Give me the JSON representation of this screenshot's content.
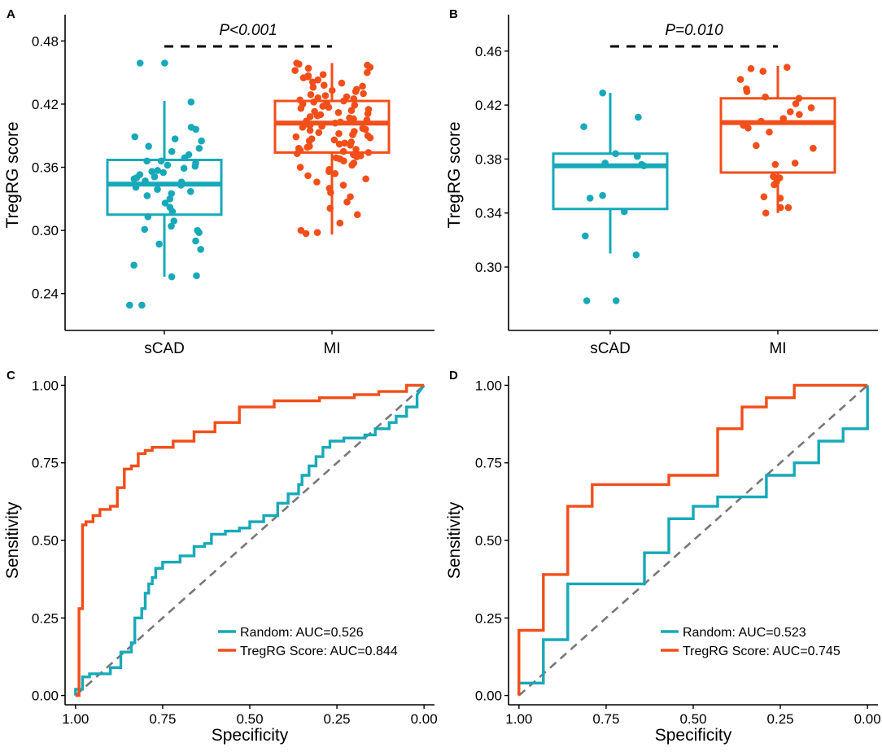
{
  "colors": {
    "teal": "#17a9b9",
    "orange": "#f24e1a",
    "diag": "#777777"
  },
  "chart_data": [
    {
      "panel": "A",
      "type": "box",
      "ylabel": "TregRG score",
      "ylim": [
        0.205,
        0.505
      ],
      "yticks": [
        "0.24",
        "0.30",
        "0.36",
        "0.42",
        "0.48"
      ],
      "categories": [
        "sCAD",
        "MI"
      ],
      "annotation": "P<0.001",
      "boxes": [
        {
          "group": "sCAD",
          "q1": 0.315,
          "median": 0.344,
          "q3": 0.367,
          "whisker_low": 0.256,
          "whisker_high": 0.423
        },
        {
          "group": "MI",
          "q1": 0.374,
          "median": 0.402,
          "q3": 0.423,
          "whisker_low": 0.296,
          "whisker_high": 0.459
        }
      ],
      "points": {
        "sCAD": [
          0.459,
          0.459,
          0.422,
          0.398,
          0.396,
          0.389,
          0.387,
          0.385,
          0.38,
          0.378,
          0.375,
          0.372,
          0.369,
          0.366,
          0.366,
          0.364,
          0.362,
          0.361,
          0.359,
          0.357,
          0.356,
          0.355,
          0.353,
          0.351,
          0.35,
          0.349,
          0.347,
          0.346,
          0.345,
          0.343,
          0.341,
          0.339,
          0.337,
          0.335,
          0.333,
          0.33,
          0.326,
          0.322,
          0.318,
          0.313,
          0.309,
          0.304,
          0.301,
          0.3,
          0.298,
          0.29,
          0.287,
          0.282,
          0.267,
          0.257,
          0.256,
          0.229,
          0.229
        ],
        "MI": [
          0.459,
          0.458,
          0.457,
          0.455,
          0.454,
          0.452,
          0.45,
          0.448,
          0.447,
          0.446,
          0.445,
          0.443,
          0.441,
          0.44,
          0.438,
          0.437,
          0.436,
          0.434,
          0.433,
          0.432,
          0.43,
          0.429,
          0.428,
          0.427,
          0.426,
          0.425,
          0.424,
          0.423,
          0.422,
          0.421,
          0.42,
          0.419,
          0.418,
          0.417,
          0.416,
          0.415,
          0.414,
          0.413,
          0.412,
          0.411,
          0.41,
          0.409,
          0.408,
          0.407,
          0.406,
          0.405,
          0.404,
          0.403,
          0.402,
          0.401,
          0.4,
          0.399,
          0.398,
          0.397,
          0.396,
          0.395,
          0.394,
          0.393,
          0.392,
          0.391,
          0.39,
          0.389,
          0.388,
          0.387,
          0.386,
          0.385,
          0.384,
          0.383,
          0.382,
          0.381,
          0.38,
          0.379,
          0.378,
          0.377,
          0.376,
          0.375,
          0.374,
          0.373,
          0.372,
          0.371,
          0.37,
          0.369,
          0.368,
          0.366,
          0.364,
          0.362,
          0.36,
          0.358,
          0.356,
          0.354,
          0.352,
          0.349,
          0.346,
          0.343,
          0.34,
          0.336,
          0.332,
          0.327,
          0.321,
          0.315,
          0.307,
          0.3,
          0.298,
          0.297
        ]
      }
    },
    {
      "panel": "B",
      "type": "box",
      "ylabel": "TregRG score",
      "ylim": [
        0.253,
        0.487
      ],
      "yticks": [
        "0.30",
        "0.34",
        "0.38",
        "0.42",
        "0.46"
      ],
      "categories": [
        "sCAD",
        "MI"
      ],
      "annotation": "P=0.010",
      "boxes": [
        {
          "group": "sCAD",
          "q1": 0.343,
          "median": 0.375,
          "q3": 0.384,
          "whisker_low": 0.31,
          "whisker_high": 0.429
        },
        {
          "group": "MI",
          "q1": 0.37,
          "median": 0.407,
          "q3": 0.425,
          "whisker_low": 0.34,
          "whisker_high": 0.449
        }
      ],
      "points": {
        "sCAD": [
          0.429,
          0.411,
          0.404,
          0.384,
          0.382,
          0.377,
          0.376,
          0.375,
          0.353,
          0.351,
          0.341,
          0.323,
          0.309,
          0.275,
          0.275
        ],
        "MI": [
          0.448,
          0.447,
          0.445,
          0.439,
          0.432,
          0.43,
          0.426,
          0.425,
          0.421,
          0.418,
          0.415,
          0.413,
          0.41,
          0.408,
          0.405,
          0.403,
          0.4,
          0.39,
          0.388,
          0.377,
          0.376,
          0.367,
          0.366,
          0.363,
          0.361,
          0.352,
          0.351,
          0.344,
          0.344,
          0.34
        ]
      }
    },
    {
      "panel": "C",
      "type": "line",
      "xlabel": "Specificity",
      "ylabel": "Sensitivity",
      "xlim": [
        1.03,
        -0.03
      ],
      "ylim": [
        -0.03,
        1.03
      ],
      "xticks": [
        "1.00",
        "0.75",
        "0.50",
        "0.25",
        "0.00"
      ],
      "yticks": [
        "0.00",
        "0.25",
        "0.50",
        "0.75",
        "1.00"
      ],
      "legend": [
        "Random: AUC=0.526",
        "TregRG Score: AUC=0.844"
      ],
      "series": [
        {
          "name": "Random",
          "color": "teal",
          "x": [
            1,
            1,
            0.98,
            0.98,
            0.96,
            0.96,
            0.9,
            0.9,
            0.87,
            0.87,
            0.84,
            0.84,
            0.83,
            0.83,
            0.81,
            0.81,
            0.8,
            0.8,
            0.79,
            0.79,
            0.78,
            0.78,
            0.77,
            0.77,
            0.75,
            0.75,
            0.7,
            0.7,
            0.66,
            0.66,
            0.63,
            0.63,
            0.61,
            0.61,
            0.57,
            0.57,
            0.53,
            0.53,
            0.5,
            0.5,
            0.46,
            0.46,
            0.42,
            0.42,
            0.39,
            0.39,
            0.36,
            0.36,
            0.35,
            0.35,
            0.33,
            0.33,
            0.31,
            0.31,
            0.29,
            0.29,
            0.27,
            0.27,
            0.23,
            0.23,
            0.17,
            0.17,
            0.14,
            0.14,
            0.1,
            0.1,
            0.08,
            0.08,
            0.05,
            0.05,
            0.02,
            0.02,
            0
          ],
          "y": [
            0,
            0.02,
            0.02,
            0.06,
            0.06,
            0.07,
            0.07,
            0.09,
            0.09,
            0.14,
            0.14,
            0.17,
            0.17,
            0.25,
            0.25,
            0.28,
            0.28,
            0.33,
            0.33,
            0.36,
            0.36,
            0.38,
            0.38,
            0.41,
            0.41,
            0.43,
            0.43,
            0.45,
            0.45,
            0.48,
            0.48,
            0.49,
            0.49,
            0.52,
            0.52,
            0.53,
            0.53,
            0.54,
            0.54,
            0.56,
            0.56,
            0.58,
            0.58,
            0.62,
            0.62,
            0.65,
            0.65,
            0.68,
            0.68,
            0.71,
            0.71,
            0.74,
            0.74,
            0.77,
            0.77,
            0.8,
            0.8,
            0.82,
            0.82,
            0.83,
            0.83,
            0.84,
            0.84,
            0.86,
            0.86,
            0.88,
            0.88,
            0.9,
            0.9,
            0.93,
            0.93,
            0.97,
            1.0
          ]
        },
        {
          "name": "TregRG Score",
          "color": "orange",
          "x": [
            1,
            0.99,
            0.99,
            0.98,
            0.98,
            0.97,
            0.97,
            0.95,
            0.95,
            0.93,
            0.93,
            0.9,
            0.9,
            0.88,
            0.88,
            0.86,
            0.86,
            0.84,
            0.84,
            0.82,
            0.82,
            0.8,
            0.8,
            0.78,
            0.78,
            0.72,
            0.72,
            0.66,
            0.66,
            0.6,
            0.6,
            0.53,
            0.53,
            0.43,
            0.43,
            0.3,
            0.3,
            0.2,
            0.2,
            0.13,
            0.13,
            0.05,
            0.05,
            0
          ],
          "y": [
            0,
            0,
            0.28,
            0.28,
            0.55,
            0.55,
            0.56,
            0.56,
            0.58,
            0.58,
            0.6,
            0.6,
            0.61,
            0.61,
            0.67,
            0.67,
            0.73,
            0.73,
            0.74,
            0.74,
            0.78,
            0.78,
            0.79,
            0.79,
            0.8,
            0.8,
            0.82,
            0.82,
            0.85,
            0.85,
            0.88,
            0.88,
            0.93,
            0.93,
            0.95,
            0.95,
            0.96,
            0.96,
            0.97,
            0.97,
            0.98,
            0.98,
            1,
            1
          ]
        }
      ]
    },
    {
      "panel": "D",
      "type": "line",
      "xlabel": "Specificity",
      "ylabel": "Sensitivity",
      "xlim": [
        1.03,
        -0.03
      ],
      "ylim": [
        -0.03,
        1.03
      ],
      "xticks": [
        "1.00",
        "0.75",
        "0.50",
        "0.25",
        "0.00"
      ],
      "yticks": [
        "0.00",
        "0.25",
        "0.50",
        "0.75",
        "1.00"
      ],
      "legend": [
        "Random: AUC=0.523",
        "TregRG Score: AUC=0.745"
      ],
      "series": [
        {
          "name": "Random",
          "color": "teal",
          "x": [
            1,
            1,
            0.93,
            0.93,
            0.86,
            0.86,
            0.64,
            0.64,
            0.57,
            0.57,
            0.5,
            0.5,
            0.43,
            0.43,
            0.36,
            0.36,
            0.29,
            0.29,
            0.21,
            0.21,
            0.14,
            0.14,
            0.07,
            0.07,
            0,
            0
          ],
          "y": [
            0,
            0.04,
            0.04,
            0.18,
            0.18,
            0.36,
            0.36,
            0.46,
            0.46,
            0.57,
            0.57,
            0.61,
            0.61,
            0.64,
            0.64,
            0.64,
            0.64,
            0.71,
            0.71,
            0.75,
            0.75,
            0.82,
            0.82,
            0.86,
            0.86,
            1.0
          ]
        },
        {
          "name": "TregRG Score",
          "color": "orange",
          "x": [
            1,
            1,
            0.93,
            0.93,
            0.86,
            0.86,
            0.79,
            0.79,
            0.57,
            0.57,
            0.43,
            0.43,
            0.36,
            0.36,
            0.29,
            0.29,
            0.21,
            0.21,
            0
          ],
          "y": [
            0,
            0.21,
            0.21,
            0.39,
            0.39,
            0.61,
            0.61,
            0.68,
            0.68,
            0.71,
            0.71,
            0.86,
            0.86,
            0.93,
            0.93,
            0.96,
            0.96,
            1.0,
            1.0
          ]
        }
      ]
    }
  ]
}
